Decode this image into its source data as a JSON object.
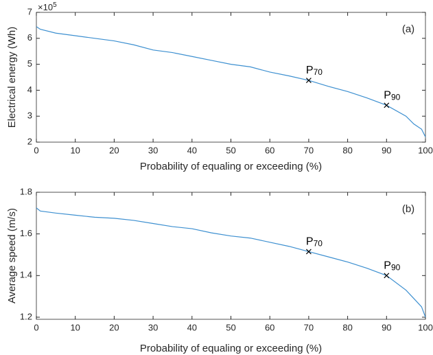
{
  "chart_data": [
    {
      "type": "line",
      "ylabel": "Electrical energy (Wh)",
      "xlabel": "Probability of equaling or exceeding (%)",
      "y_exponent": {
        "base": "×10",
        "power": "5"
      },
      "panel_label": "(a)",
      "xlim": [
        0,
        100
      ],
      "xticks": [
        0,
        10,
        20,
        30,
        40,
        50,
        60,
        70,
        80,
        90,
        100
      ],
      "ylim": [
        2,
        7
      ],
      "yticks": [
        2,
        3,
        4,
        5,
        6,
        7
      ],
      "series": [
        {
          "color": "#3c8fd0",
          "x": [
            0,
            1,
            5,
            10,
            15,
            20,
            25,
            30,
            35,
            40,
            45,
            50,
            55,
            60,
            65,
            70,
            75,
            80,
            85,
            90,
            95,
            97,
            99,
            100
          ],
          "values": [
            6.45,
            6.35,
            6.2,
            6.1,
            6.0,
            5.9,
            5.75,
            5.55,
            5.45,
            5.3,
            5.15,
            5.0,
            4.9,
            4.7,
            4.55,
            4.38,
            4.15,
            3.95,
            3.7,
            3.42,
            3.0,
            2.7,
            2.5,
            2.2
          ]
        }
      ],
      "annotations": [
        {
          "text": "P",
          "sub": "70",
          "x": 70,
          "y": 4.38
        },
        {
          "text": "P",
          "sub": "90",
          "x": 90,
          "y": 3.42
        }
      ]
    },
    {
      "type": "line",
      "ylabel": "Average speed (m/s)",
      "xlabel": "Probability of equaling or exceeding (%)",
      "panel_label": "(b)",
      "xlim": [
        0,
        100
      ],
      "xticks": [
        0,
        10,
        20,
        30,
        40,
        50,
        60,
        70,
        80,
        90,
        100
      ],
      "ylim": [
        1.19,
        1.8
      ],
      "yticks": [
        1.2,
        1.4,
        1.6,
        1.8
      ],
      "series": [
        {
          "color": "#3c8fd0",
          "x": [
            0,
            1,
            5,
            10,
            15,
            20,
            25,
            30,
            35,
            40,
            45,
            50,
            55,
            60,
            65,
            70,
            75,
            80,
            85,
            90,
            95,
            97,
            99,
            100
          ],
          "values": [
            1.725,
            1.71,
            1.7,
            1.69,
            1.68,
            1.675,
            1.665,
            1.65,
            1.635,
            1.625,
            1.605,
            1.59,
            1.58,
            1.56,
            1.54,
            1.515,
            1.49,
            1.465,
            1.435,
            1.4,
            1.33,
            1.29,
            1.25,
            1.2
          ]
        }
      ],
      "annotations": [
        {
          "text": "P",
          "sub": "70",
          "x": 70,
          "y": 1.515
        },
        {
          "text": "P",
          "sub": "90",
          "x": 90,
          "y": 1.4
        }
      ]
    }
  ]
}
